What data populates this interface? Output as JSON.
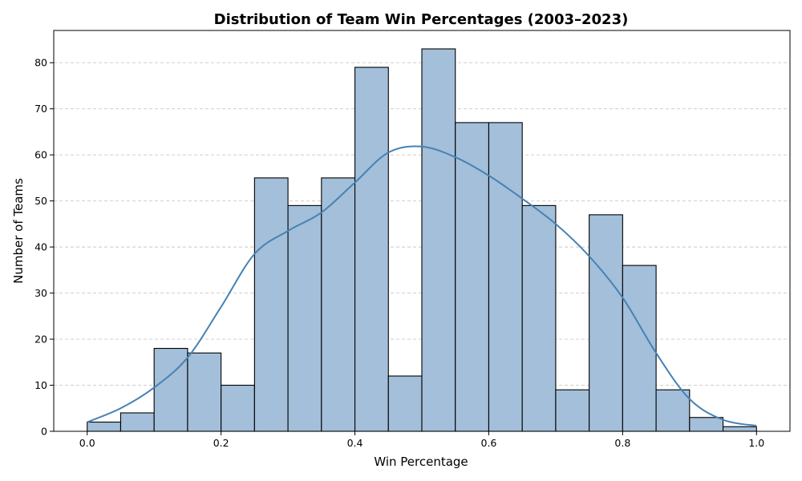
{
  "chart_data": {
    "type": "bar",
    "subtype": "histogram",
    "title": "Distribution of Team Win Percentages (2003–2023)",
    "xlabel": "Win Percentage",
    "ylabel": "Number of Teams",
    "bin_edges": [
      0.0,
      0.05,
      0.1,
      0.15,
      0.2,
      0.25,
      0.3,
      0.35,
      0.4,
      0.45,
      0.5,
      0.55,
      0.6,
      0.65,
      0.7,
      0.75,
      0.8,
      0.85,
      0.9,
      0.95,
      1.0
    ],
    "values": [
      2,
      4,
      18,
      17,
      10,
      55,
      49,
      55,
      79,
      12,
      83,
      67,
      67,
      49,
      9,
      47,
      36,
      9,
      3,
      1
    ],
    "kde": {
      "x": [
        0.0,
        0.05,
        0.1,
        0.15,
        0.2,
        0.25,
        0.3,
        0.35,
        0.4,
        0.45,
        0.5,
        0.55,
        0.6,
        0.65,
        0.7,
        0.75,
        0.8,
        0.85,
        0.9,
        0.95,
        1.0
      ],
      "y": [
        2,
        5,
        9.5,
        16,
        27,
        38.5,
        43.5,
        47.5,
        54,
        60.5,
        61.8,
        59.5,
        55.5,
        50.5,
        45,
        38,
        29,
        17,
        7,
        2.5,
        1.2
      ]
    },
    "xlim": [
      -0.05,
      1.05
    ],
    "ylim": [
      0,
      87
    ],
    "xticks": [
      0.0,
      0.2,
      0.4,
      0.6,
      0.8,
      1.0
    ],
    "xtick_labels": [
      "0.0",
      "0.2",
      "0.4",
      "0.6",
      "0.8",
      "1.0"
    ],
    "yticks": [
      0,
      10,
      20,
      30,
      40,
      50,
      60,
      70,
      80
    ],
    "ytick_labels": [
      "0",
      "10",
      "20",
      "30",
      "40",
      "50",
      "60",
      "70",
      "80"
    ],
    "grid": "y-dashed",
    "colors": {
      "bar_fill": "#a3bfd9",
      "bar_edge": "#000000",
      "kde_line": "#4682b4",
      "grid": "#c8c8c8"
    }
  }
}
